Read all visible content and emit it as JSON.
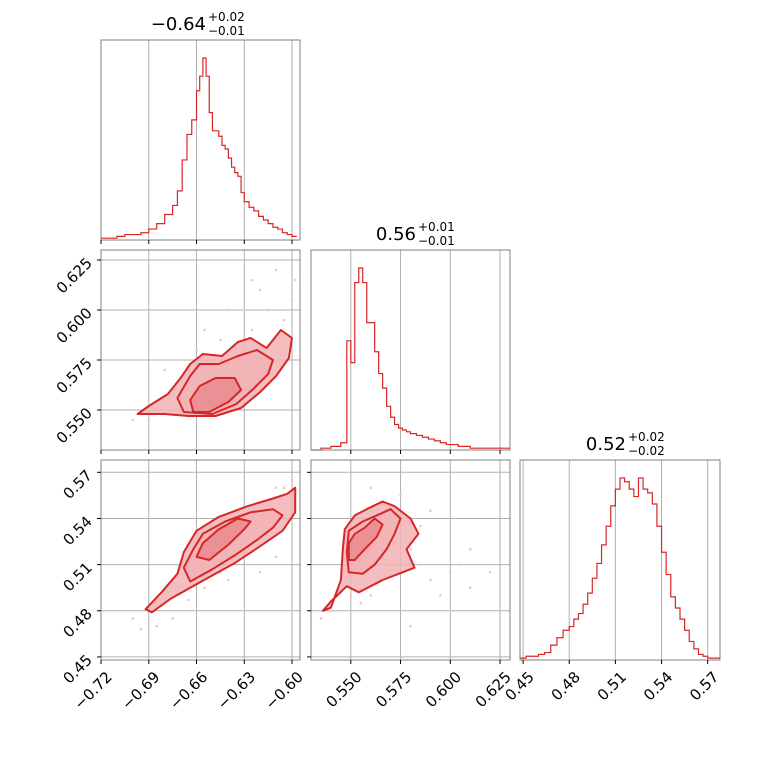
{
  "colors": {
    "line": "#d62728",
    "fill": "#f2b3b6",
    "fill_dark": "#e98a8e",
    "grid": "#b0b0b0",
    "frame": "#808080",
    "scatter": "#f4c2c4"
  },
  "titles": {
    "p1": {
      "main": "−0.64",
      "sup": "+0.02",
      "sub": "−0.01"
    },
    "p2": {
      "main": "0.56",
      "sup": "+0.01",
      "sub": "−0.01"
    },
    "p3": {
      "main": "0.52",
      "sup": "+0.02",
      "sub": "−0.02"
    }
  },
  "axes": {
    "p1": {
      "ticks": [
        -0.72,
        -0.69,
        -0.66,
        -0.63,
        -0.6
      ],
      "tick_labels": [
        "−0.72",
        "−0.69",
        "−0.66",
        "−0.63",
        "−0.60"
      ],
      "lim": [
        -0.72,
        -0.595
      ]
    },
    "p2": {
      "ticks": [
        0.55,
        0.575,
        0.6,
        0.625
      ],
      "tick_labels": [
        "0.550",
        "0.575",
        "0.600",
        "0.625"
      ],
      "lim": [
        0.53,
        0.63
      ]
    },
    "p3": {
      "ticks": [
        0.45,
        0.48,
        0.51,
        0.54,
        0.57
      ],
      "tick_labels": [
        "0.45",
        "0.48",
        "0.51",
        "0.54",
        "0.57"
      ],
      "lim": [
        0.448,
        0.578
      ]
    }
  },
  "chart_data": {
    "type": "corner",
    "grid": true,
    "histograms": [
      {
        "param": "p1",
        "bins": [
          -0.72,
          -0.715,
          -0.71,
          -0.705,
          -0.7,
          -0.695,
          -0.69,
          -0.685,
          -0.68,
          -0.675,
          -0.672,
          -0.669,
          -0.666,
          -0.663,
          -0.66,
          -0.658,
          -0.656,
          -0.654,
          -0.652,
          -0.65,
          -0.648,
          -0.646,
          -0.644,
          -0.642,
          -0.64,
          -0.638,
          -0.636,
          -0.634,
          -0.632,
          -0.63,
          -0.627,
          -0.624,
          -0.621,
          -0.618,
          -0.615,
          -0.612,
          -0.609,
          -0.606,
          -0.603,
          -0.6,
          -0.597
        ],
        "counts": [
          1,
          1,
          2,
          3,
          3,
          4,
          6,
          9,
          14,
          19,
          27,
          44,
          58,
          66,
          82,
          90,
          100,
          90,
          70,
          60,
          60,
          57,
          52,
          50,
          45,
          40,
          37,
          35,
          26,
          21,
          18,
          16,
          13,
          11,
          9,
          7,
          6,
          4,
          3,
          2
        ]
      },
      {
        "param": "p2",
        "bins": [
          0.53,
          0.535,
          0.54,
          0.545,
          0.548,
          0.55,
          0.552,
          0.554,
          0.556,
          0.558,
          0.56,
          0.562,
          0.564,
          0.566,
          0.568,
          0.57,
          0.572,
          0.574,
          0.576,
          0.578,
          0.58,
          0.583,
          0.586,
          0.589,
          0.592,
          0.595,
          0.598,
          0.601,
          0.604,
          0.607,
          0.61,
          0.615,
          0.62,
          0.625,
          0.63
        ],
        "counts": [
          0,
          1,
          2,
          4,
          60,
          48,
          92,
          100,
          92,
          70,
          70,
          54,
          42,
          34,
          24,
          18,
          14,
          12,
          11,
          10,
          9,
          8,
          7,
          6,
          5,
          4,
          3,
          3,
          2,
          2,
          1,
          1,
          1,
          1
        ]
      },
      {
        "param": "p3",
        "bins": [
          0.448,
          0.452,
          0.456,
          0.46,
          0.464,
          0.468,
          0.472,
          0.476,
          0.48,
          0.483,
          0.486,
          0.489,
          0.492,
          0.495,
          0.498,
          0.501,
          0.504,
          0.507,
          0.51,
          0.513,
          0.516,
          0.519,
          0.522,
          0.525,
          0.528,
          0.531,
          0.534,
          0.537,
          0.54,
          0.543,
          0.546,
          0.549,
          0.552,
          0.555,
          0.558,
          0.561,
          0.564,
          0.567,
          0.57,
          0.574,
          0.578
        ],
        "counts": [
          1,
          2,
          2,
          3,
          4,
          8,
          12,
          16,
          18,
          22,
          25,
          30,
          36,
          44,
          52,
          62,
          72,
          83,
          92,
          98,
          96,
          92,
          88,
          98,
          92,
          90,
          84,
          72,
          58,
          46,
          34,
          28,
          22,
          16,
          10,
          6,
          3,
          2,
          1,
          1
        ]
      }
    ],
    "contours": [
      {
        "x_param": "p1",
        "y_param": "p2",
        "levels": [
          [
            [
              -0.662,
              0.549
            ],
            [
              -0.652,
              0.549
            ],
            [
              -0.64,
              0.554
            ],
            [
              -0.632,
              0.56
            ],
            [
              -0.636,
              0.566
            ],
            [
              -0.648,
              0.566
            ],
            [
              -0.658,
              0.562
            ],
            [
              -0.664,
              0.555
            ]
          ],
          [
            [
              -0.668,
              0.549
            ],
            [
              -0.65,
              0.548
            ],
            [
              -0.635,
              0.553
            ],
            [
              -0.625,
              0.56
            ],
            [
              -0.615,
              0.568
            ],
            [
              -0.612,
              0.575
            ],
            [
              -0.622,
              0.58
            ],
            [
              -0.634,
              0.577
            ],
            [
              -0.646,
              0.573
            ],
            [
              -0.658,
              0.573
            ],
            [
              -0.664,
              0.567
            ],
            [
              -0.672,
              0.556
            ]
          ],
          [
            [
              -0.68,
              0.548
            ],
            [
              -0.665,
              0.547
            ],
            [
              -0.648,
              0.547
            ],
            [
              -0.632,
              0.551
            ],
            [
              -0.62,
              0.559
            ],
            [
              -0.61,
              0.567
            ],
            [
              -0.602,
              0.576
            ],
            [
              -0.6,
              0.586
            ],
            [
              -0.607,
              0.59
            ],
            [
              -0.616,
              0.581
            ],
            [
              -0.626,
              0.586
            ],
            [
              -0.634,
              0.584
            ],
            [
              -0.644,
              0.577
            ],
            [
              -0.656,
              0.578
            ],
            [
              -0.664,
              0.573
            ],
            [
              -0.67,
              0.566
            ],
            [
              -0.678,
              0.558
            ],
            [
              -0.69,
              0.552
            ],
            [
              -0.697,
              0.548
            ]
          ]
        ],
        "points": [
          [
            -0.66,
            0.555
          ],
          [
            -0.65,
            0.56
          ],
          [
            -0.64,
            0.566
          ],
          [
            -0.63,
            0.57
          ],
          [
            -0.62,
            0.578
          ],
          [
            -0.61,
            0.585
          ],
          [
            -0.605,
            0.595
          ],
          [
            -0.615,
            0.6
          ],
          [
            -0.625,
            0.59
          ],
          [
            -0.635,
            0.58
          ],
          [
            -0.645,
            0.575
          ],
          [
            -0.655,
            0.57
          ],
          [
            -0.665,
            0.565
          ],
          [
            -0.675,
            0.56
          ],
          [
            -0.685,
            0.553
          ],
          [
            -0.695,
            0.548
          ],
          [
            -0.7,
            0.545
          ],
          [
            -0.69,
            0.545
          ],
          [
            -0.67,
            0.552
          ],
          [
            -0.645,
            0.585
          ],
          [
            -0.63,
            0.6
          ],
          [
            -0.62,
            0.61
          ],
          [
            -0.64,
            0.6
          ],
          [
            -0.655,
            0.59
          ],
          [
            -0.6,
            0.605
          ],
          [
            -0.598,
            0.615
          ],
          [
            -0.61,
            0.62
          ],
          [
            -0.625,
            0.615
          ],
          [
            -0.66,
            0.58
          ],
          [
            -0.68,
            0.57
          ]
        ]
      },
      {
        "x_param": "p1",
        "y_param": "p3",
        "levels": [
          [
            [
              -0.652,
              0.513
            ],
            [
              -0.64,
              0.523
            ],
            [
              -0.63,
              0.533
            ],
            [
              -0.626,
              0.538
            ],
            [
              -0.634,
              0.54
            ],
            [
              -0.646,
              0.533
            ],
            [
              -0.656,
              0.524
            ],
            [
              -0.66,
              0.515
            ]
          ],
          [
            [
              -0.664,
              0.499
            ],
            [
              -0.65,
              0.507
            ],
            [
              -0.636,
              0.516
            ],
            [
              -0.622,
              0.526
            ],
            [
              -0.612,
              0.534
            ],
            [
              -0.606,
              0.542
            ],
            [
              -0.612,
              0.546
            ],
            [
              -0.626,
              0.544
            ],
            [
              -0.642,
              0.538
            ],
            [
              -0.656,
              0.53
            ],
            [
              -0.662,
              0.52
            ],
            [
              -0.668,
              0.508
            ]
          ],
          [
            [
              -0.688,
              0.479
            ],
            [
              -0.676,
              0.488
            ],
            [
              -0.664,
              0.495
            ],
            [
              -0.65,
              0.503
            ],
            [
              -0.636,
              0.511
            ],
            [
              -0.62,
              0.522
            ],
            [
              -0.606,
              0.532
            ],
            [
              -0.598,
              0.544
            ],
            [
              -0.598,
              0.56
            ],
            [
              -0.603,
              0.556
            ],
            [
              -0.612,
              0.553
            ],
            [
              -0.628,
              0.548
            ],
            [
              -0.646,
              0.541
            ],
            [
              -0.66,
              0.532
            ],
            [
              -0.668,
              0.518
            ],
            [
              -0.672,
              0.504
            ],
            [
              -0.682,
              0.492
            ],
            [
              -0.692,
              0.481
            ]
          ]
        ],
        "points": [
          [
            -0.69,
            0.48
          ],
          [
            -0.68,
            0.488
          ],
          [
            -0.67,
            0.495
          ],
          [
            -0.66,
            0.505
          ],
          [
            -0.65,
            0.512
          ],
          [
            -0.64,
            0.52
          ],
          [
            -0.63,
            0.528
          ],
          [
            -0.62,
            0.535
          ],
          [
            -0.61,
            0.542
          ],
          [
            -0.6,
            0.55
          ],
          [
            -0.605,
            0.56
          ],
          [
            -0.615,
            0.545
          ],
          [
            -0.625,
            0.53
          ],
          [
            -0.635,
            0.515
          ],
          [
            -0.645,
            0.505
          ],
          [
            -0.655,
            0.495
          ],
          [
            -0.665,
            0.487
          ],
          [
            -0.675,
            0.475
          ],
          [
            -0.685,
            0.47
          ],
          [
            -0.64,
            0.5
          ],
          [
            -0.62,
            0.505
          ],
          [
            -0.61,
            0.515
          ],
          [
            -0.6,
            0.525
          ],
          [
            -0.6,
            0.565
          ],
          [
            -0.61,
            0.56
          ],
          [
            -0.695,
            0.468
          ],
          [
            -0.7,
            0.475
          ],
          [
            -0.66,
            0.53
          ],
          [
            -0.65,
            0.535
          ],
          [
            -0.63,
            0.548
          ]
        ]
      },
      {
        "x_param": "p2",
        "y_param": "p3",
        "levels": [
          [
            [
              0.549,
              0.513
            ],
            [
              0.552,
              0.513
            ],
            [
              0.557,
              0.52
            ],
            [
              0.563,
              0.528
            ],
            [
              0.566,
              0.536
            ],
            [
              0.562,
              0.54
            ],
            [
              0.557,
              0.534
            ],
            [
              0.552,
              0.53
            ],
            [
              0.549,
              0.524
            ]
          ],
          [
            [
              0.549,
              0.505
            ],
            [
              0.556,
              0.504
            ],
            [
              0.562,
              0.51
            ],
            [
              0.568,
              0.52
            ],
            [
              0.572,
              0.53
            ],
            [
              0.575,
              0.54
            ],
            [
              0.57,
              0.546
            ],
            [
              0.563,
              0.542
            ],
            [
              0.556,
              0.538
            ],
            [
              0.549,
              0.532
            ],
            [
              0.548,
              0.518
            ]
          ],
          [
            [
              0.548,
              0.496
            ],
            [
              0.554,
              0.492
            ],
            [
              0.56,
              0.496
            ],
            [
              0.566,
              0.5
            ],
            [
              0.574,
              0.504
            ],
            [
              0.582,
              0.508
            ],
            [
              0.578,
              0.52
            ],
            [
              0.584,
              0.53
            ],
            [
              0.58,
              0.54
            ],
            [
              0.572,
              0.548
            ],
            [
              0.566,
              0.551
            ],
            [
              0.558,
              0.546
            ],
            [
              0.552,
              0.542
            ],
            [
              0.547,
              0.533
            ],
            [
              0.546,
              0.52
            ],
            [
              0.545,
              0.5
            ],
            [
              0.54,
              0.482
            ],
            [
              0.536,
              0.48
            ],
            [
              0.54,
              0.486
            ]
          ]
        ],
        "points": [
          [
            0.55,
            0.5
          ],
          [
            0.552,
            0.51
          ],
          [
            0.555,
            0.52
          ],
          [
            0.558,
            0.53
          ],
          [
            0.562,
            0.54
          ],
          [
            0.566,
            0.55
          ],
          [
            0.57,
            0.54
          ],
          [
            0.575,
            0.53
          ],
          [
            0.58,
            0.52
          ],
          [
            0.585,
            0.51
          ],
          [
            0.59,
            0.5
          ],
          [
            0.595,
            0.49
          ],
          [
            0.6,
            0.48
          ],
          [
            0.57,
            0.51
          ],
          [
            0.565,
            0.5
          ],
          [
            0.56,
            0.49
          ],
          [
            0.555,
            0.485
          ],
          [
            0.54,
            0.48
          ],
          [
            0.535,
            0.475
          ],
          [
            0.6,
            0.505
          ],
          [
            0.605,
            0.51
          ],
          [
            0.61,
            0.495
          ],
          [
            0.58,
            0.47
          ],
          [
            0.59,
            0.545
          ],
          [
            0.585,
            0.535
          ],
          [
            0.61,
            0.52
          ],
          [
            0.62,
            0.505
          ],
          [
            0.575,
            0.555
          ],
          [
            0.56,
            0.56
          ],
          [
            0.55,
            0.49
          ]
        ]
      }
    ]
  }
}
